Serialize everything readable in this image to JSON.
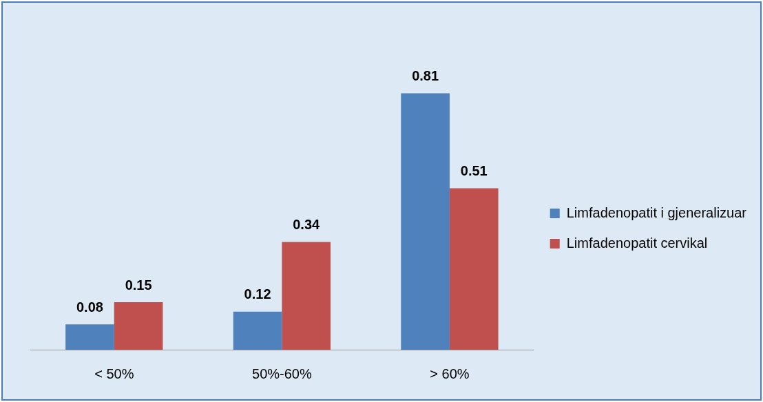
{
  "chart_data": {
    "type": "bar",
    "categories": [
      "< 50%",
      "50%-60%",
      "> 60%"
    ],
    "series": [
      {
        "name": "Limfadenopatit i gjeneralizuar",
        "color": "#4f81bd",
        "values": [
          0.08,
          0.12,
          0.81
        ]
      },
      {
        "name": "Limfadenopatit cervikal",
        "color": "#c0504d",
        "values": [
          0.15,
          0.34,
          0.51
        ]
      }
    ],
    "data_labels": true,
    "legend": "right",
    "grid": false
  }
}
